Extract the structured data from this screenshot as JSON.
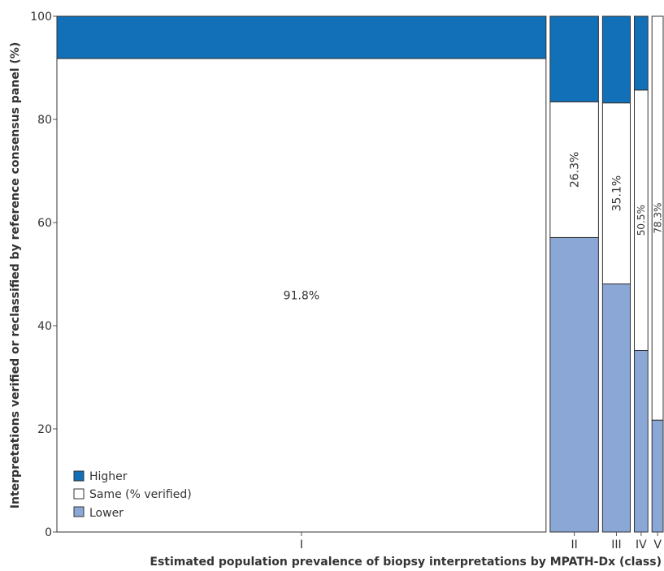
{
  "chart_data": {
    "type": "mosaic",
    "xlabel": "Estimated population prevalence of biopsy interpretations by MPATH-Dx (class)",
    "ylabel": "Interpretations verified or reclassified by reference consensus panel (%)",
    "ylim": [
      0,
      100
    ],
    "yticks": [
      0,
      20,
      40,
      60,
      80,
      100
    ],
    "grid": false,
    "legend_position": "bottom-left",
    "series": [
      {
        "key": "higher",
        "name": "Higher",
        "color": "#1170b8"
      },
      {
        "key": "same",
        "name": "Same (% verified)",
        "color": "#ffffff"
      },
      {
        "key": "lower",
        "name": "Lower",
        "color": "#8ba7d6"
      }
    ],
    "columns": [
      {
        "label": "I",
        "prevalence": 0.829,
        "lower": 0,
        "same": 91.8,
        "higher": 8.2,
        "same_label": "91.8%"
      },
      {
        "label": "II",
        "prevalence": 0.082,
        "lower": 57.1,
        "same": 26.3,
        "higher": 16.6,
        "same_label": "26.3%"
      },
      {
        "label": "III",
        "prevalence": 0.047,
        "lower": 48.1,
        "same": 35.1,
        "higher": 16.8,
        "same_label": "35.1%"
      },
      {
        "label": "IV",
        "prevalence": 0.023,
        "lower": 35.2,
        "same": 50.5,
        "higher": 14.3,
        "same_label": "50.5%"
      },
      {
        "label": "V",
        "prevalence": 0.019,
        "lower": 21.7,
        "same": 78.3,
        "higher": 0,
        "same_label": "78.3%"
      }
    ]
  }
}
